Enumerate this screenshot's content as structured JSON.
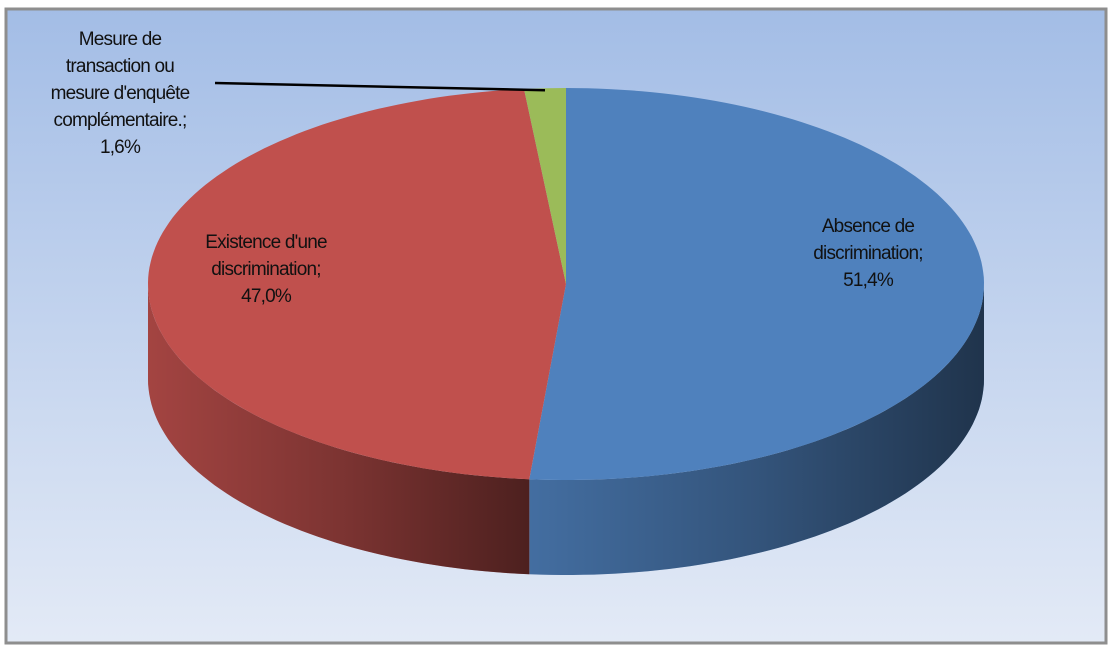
{
  "chart_data": {
    "type": "pie3d",
    "categories": [
      "Absence de discrimination;",
      "Existence d'une discrimination;",
      "Mesure de transaction ou mesure d'enquête complémentaire.;"
    ],
    "values": [
      51.4,
      47.0,
      1.6
    ],
    "value_labels": [
      "51,4%",
      "47,0%",
      "1,6%"
    ],
    "colors": [
      "#4f81bd",
      "#c0504d",
      "#9bbb59"
    ]
  }
}
